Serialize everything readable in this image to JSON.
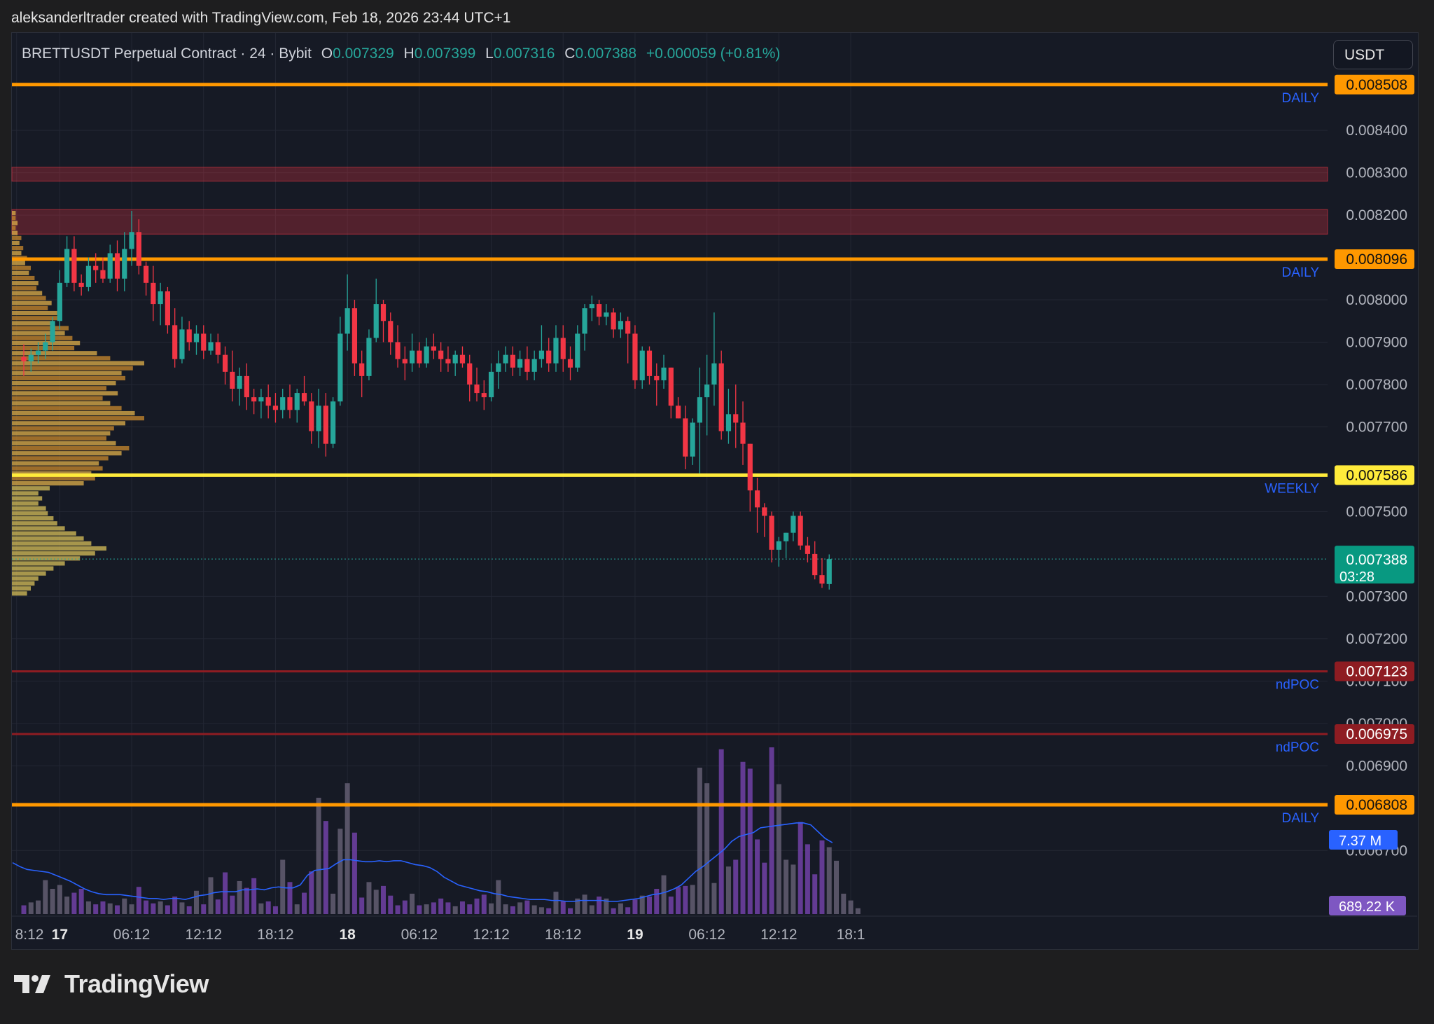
{
  "header": {
    "attribution": "aleksanderltrader created with TradingView.com, Feb 18, 2026 23:44 UTC+1"
  },
  "legend": {
    "title": "BRETTUSDT Perpetual Contract · 24 · Bybit",
    "open_label": "O",
    "open": "0.007329",
    "high_label": "H",
    "high": "0.007399",
    "low_label": "L",
    "low": "0.007316",
    "close_label": "C",
    "close": "0.007388",
    "change": "+0.000059 (+0.81%)"
  },
  "currency_button": "USDT",
  "footer": {
    "brand": "TradingView"
  },
  "colors": {
    "up": "#26a69a",
    "down": "#f23645",
    "daily": "#ff9800",
    "weekly": "#ffeb3b",
    "ndpoc": "#8e1c22",
    "level_text": "#2962ff",
    "volume": "#6b3fa0",
    "volume_ma": "#2962ff"
  },
  "chart_data": {
    "type": "candlestick",
    "symbol": "BRETTUSDT Perpetual Contract",
    "timeframe": "24",
    "exchange": "Bybit",
    "y_ticks": [
      "0.008400",
      "0.008300",
      "0.008200",
      "0.008000",
      "0.007900",
      "0.007800",
      "0.007700",
      "0.007500",
      "0.007300",
      "0.007200",
      "0.007100",
      "0.007000",
      "0.006900",
      "0.006700"
    ],
    "ylim": [
      0.00655,
      0.00863
    ],
    "x_ticks": [
      {
        "label": "8:12",
        "slot": -1
      },
      {
        "label": "17",
        "slot": 5
      },
      {
        "label": "06:12",
        "slot": 15
      },
      {
        "label": "12:12",
        "slot": 25
      },
      {
        "label": "18:12",
        "slot": 35
      },
      {
        "label": "18",
        "slot": 45
      },
      {
        "label": "06:12",
        "slot": 55
      },
      {
        "label": "12:12",
        "slot": 65
      },
      {
        "label": "18:12",
        "slot": 75
      },
      {
        "label": "19",
        "slot": 85
      },
      {
        "label": "06:12",
        "slot": 95
      },
      {
        "label": "12:12",
        "slot": 105
      },
      {
        "label": "18:1",
        "slot": 115
      }
    ],
    "horizontal_levels": [
      {
        "price": 0.008508,
        "label": "0.008508",
        "tag": "DAILY",
        "style": "daily"
      },
      {
        "price": 0.008096,
        "label": "0.008096",
        "tag": "DAILY",
        "style": "daily"
      },
      {
        "price": 0.007586,
        "label": "0.007586",
        "tag": "WEEKLY",
        "style": "weekly"
      },
      {
        "price": 0.007123,
        "label": "0.007123",
        "tag": "ndPOC",
        "style": "ndpoc"
      },
      {
        "price": 0.006975,
        "label": "0.006975",
        "tag": "ndPOC",
        "style": "ndpoc"
      },
      {
        "price": 0.006808,
        "label": "0.006808",
        "tag": "DAILY",
        "style": "daily"
      }
    ],
    "zones": [
      {
        "top": 0.008313,
        "bottom": 0.00828
      },
      {
        "top": 0.008213,
        "bottom": 0.008155
      }
    ],
    "current_price": {
      "price": 0.007388,
      "label": "0.007388",
      "countdown": "03:28"
    },
    "volume_ma_badge": "7.37 M",
    "volume_badge": "689.22 K",
    "candles": [
      [
        0.007865,
        0.007895,
        0.00782,
        0.007855
      ],
      [
        0.007855,
        0.007885,
        0.00783,
        0.00787
      ],
      [
        0.00787,
        0.0079,
        0.00785,
        0.00788
      ],
      [
        0.00788,
        0.00792,
        0.00786,
        0.0079
      ],
      [
        0.0079,
        0.00796,
        0.00788,
        0.00795
      ],
      [
        0.00795,
        0.00807,
        0.00793,
        0.00804
      ],
      [
        0.00804,
        0.00815,
        0.00803,
        0.00812
      ],
      [
        0.00812,
        0.00815,
        0.00802,
        0.00804
      ],
      [
        0.00804,
        0.00806,
        0.00801,
        0.00803
      ],
      [
        0.00803,
        0.0081,
        0.00802,
        0.00808
      ],
      [
        0.00808,
        0.00811,
        0.00804,
        0.00807
      ],
      [
        0.00807,
        0.0081,
        0.00804,
        0.00805
      ],
      [
        0.00805,
        0.00813,
        0.00804,
        0.00811
      ],
      [
        0.00811,
        0.00814,
        0.00802,
        0.00805
      ],
      [
        0.00805,
        0.00816,
        0.00802,
        0.00812
      ],
      [
        0.00812,
        0.00821,
        0.00808,
        0.00816
      ],
      [
        0.00816,
        0.00819,
        0.00806,
        0.00808
      ],
      [
        0.00808,
        0.00809,
        0.00801,
        0.00804
      ],
      [
        0.00804,
        0.00808,
        0.00795,
        0.00799
      ],
      [
        0.00799,
        0.00804,
        0.00794,
        0.00802
      ],
      [
        0.00802,
        0.00803,
        0.00792,
        0.00794
      ],
      [
        0.00794,
        0.00798,
        0.00784,
        0.00786
      ],
      [
        0.00786,
        0.00796,
        0.00785,
        0.00793
      ],
      [
        0.00793,
        0.00795,
        0.00788,
        0.0079
      ],
      [
        0.0079,
        0.00794,
        0.00787,
        0.00792
      ],
      [
        0.00792,
        0.00794,
        0.00786,
        0.00788
      ],
      [
        0.00788,
        0.00792,
        0.00787,
        0.0079
      ],
      [
        0.0079,
        0.00792,
        0.00785,
        0.00787
      ],
      [
        0.00787,
        0.00789,
        0.0078,
        0.00783
      ],
      [
        0.00783,
        0.00788,
        0.00776,
        0.00779
      ],
      [
        0.00779,
        0.00784,
        0.00775,
        0.00782
      ],
      [
        0.00782,
        0.00785,
        0.00774,
        0.00777
      ],
      [
        0.00777,
        0.00779,
        0.00773,
        0.00776
      ],
      [
        0.00776,
        0.00779,
        0.00772,
        0.00777
      ],
      [
        0.00777,
        0.0078,
        0.00772,
        0.00775
      ],
      [
        0.00775,
        0.00778,
        0.00771,
        0.00774
      ],
      [
        0.00774,
        0.00779,
        0.00772,
        0.00777
      ],
      [
        0.00777,
        0.0078,
        0.00772,
        0.00774
      ],
      [
        0.00774,
        0.00779,
        0.00771,
        0.00778
      ],
      [
        0.00778,
        0.00782,
        0.00775,
        0.00776
      ],
      [
        0.00776,
        0.00778,
        0.00766,
        0.00769
      ],
      [
        0.00769,
        0.00779,
        0.00765,
        0.00775
      ],
      [
        0.00775,
        0.00778,
        0.00763,
        0.00766
      ],
      [
        0.00766,
        0.00777,
        0.00765,
        0.00776
      ],
      [
        0.00776,
        0.00796,
        0.00775,
        0.00792
      ],
      [
        0.00792,
        0.00806,
        0.00788,
        0.00798
      ],
      [
        0.00798,
        0.008,
        0.00782,
        0.00785
      ],
      [
        0.00785,
        0.00788,
        0.00777,
        0.00782
      ],
      [
        0.00782,
        0.00793,
        0.00781,
        0.00791
      ],
      [
        0.00791,
        0.00805,
        0.0079,
        0.00799
      ],
      [
        0.00799,
        0.008,
        0.0079,
        0.00795
      ],
      [
        0.00795,
        0.00797,
        0.00787,
        0.0079
      ],
      [
        0.0079,
        0.00794,
        0.00784,
        0.00786
      ],
      [
        0.00786,
        0.00789,
        0.00781,
        0.00785
      ],
      [
        0.00785,
        0.00792,
        0.00783,
        0.00788
      ],
      [
        0.00788,
        0.0079,
        0.00784,
        0.00785
      ],
      [
        0.00785,
        0.00791,
        0.00784,
        0.00789
      ],
      [
        0.00789,
        0.00792,
        0.00786,
        0.00788
      ],
      [
        0.00788,
        0.0079,
        0.00783,
        0.00786
      ],
      [
        0.00786,
        0.00789,
        0.00783,
        0.00785
      ],
      [
        0.00785,
        0.00788,
        0.00782,
        0.00787
      ],
      [
        0.00787,
        0.00789,
        0.00784,
        0.00785
      ],
      [
        0.00785,
        0.00787,
        0.00776,
        0.0078
      ],
      [
        0.0078,
        0.00784,
        0.00776,
        0.00778
      ],
      [
        0.00778,
        0.00781,
        0.00774,
        0.00777
      ],
      [
        0.00777,
        0.00785,
        0.00776,
        0.00783
      ],
      [
        0.00783,
        0.00788,
        0.00779,
        0.00785
      ],
      [
        0.00785,
        0.00789,
        0.00783,
        0.00787
      ],
      [
        0.00787,
        0.00789,
        0.00782,
        0.00784
      ],
      [
        0.00784,
        0.00788,
        0.00782,
        0.00786
      ],
      [
        0.00786,
        0.00789,
        0.00781,
        0.00783
      ],
      [
        0.00783,
        0.00788,
        0.00781,
        0.00786
      ],
      [
        0.00786,
        0.00794,
        0.00784,
        0.00788
      ],
      [
        0.00788,
        0.00791,
        0.00783,
        0.00785
      ],
      [
        0.00785,
        0.00794,
        0.00783,
        0.00791
      ],
      [
        0.00791,
        0.00794,
        0.00783,
        0.00786
      ],
      [
        0.00786,
        0.00789,
        0.00781,
        0.00784
      ],
      [
        0.00784,
        0.00794,
        0.00783,
        0.00792
      ],
      [
        0.00792,
        0.00799,
        0.00788,
        0.00798
      ],
      [
        0.00798,
        0.00801,
        0.00795,
        0.00799
      ],
      [
        0.00799,
        0.008,
        0.00794,
        0.00796
      ],
      [
        0.00796,
        0.00799,
        0.00794,
        0.00797
      ],
      [
        0.00797,
        0.00798,
        0.00791,
        0.00793
      ],
      [
        0.00793,
        0.00797,
        0.00791,
        0.00795
      ],
      [
        0.00795,
        0.00796,
        0.00785,
        0.00792
      ],
      [
        0.00792,
        0.00794,
        0.00779,
        0.00781
      ],
      [
        0.00781,
        0.00789,
        0.00779,
        0.00788
      ],
      [
        0.00788,
        0.00789,
        0.0078,
        0.00782
      ],
      [
        0.00782,
        0.00785,
        0.00775,
        0.00781
      ],
      [
        0.00781,
        0.00787,
        0.00779,
        0.00784
      ],
      [
        0.00784,
        0.00784,
        0.00772,
        0.00775
      ],
      [
        0.00775,
        0.00777,
        0.00772,
        0.00772
      ],
      [
        0.00772,
        0.00775,
        0.0076,
        0.00763
      ],
      [
        0.00763,
        0.00772,
        0.00761,
        0.00771
      ],
      [
        0.00771,
        0.00784,
        0.00759,
        0.00777
      ],
      [
        0.00777,
        0.00787,
        0.00768,
        0.0078
      ],
      [
        0.0078,
        0.00797,
        0.00775,
        0.00785
      ],
      [
        0.00785,
        0.00788,
        0.00767,
        0.00769
      ],
      [
        0.00769,
        0.00779,
        0.00766,
        0.00773
      ],
      [
        0.00773,
        0.0078,
        0.00765,
        0.00771
      ],
      [
        0.00771,
        0.00776,
        0.00761,
        0.00766
      ],
      [
        0.00766,
        0.00766,
        0.0075,
        0.00755
      ],
      [
        0.00755,
        0.00758,
        0.00745,
        0.00751
      ],
      [
        0.00751,
        0.00752,
        0.00744,
        0.00749
      ],
      [
        0.00749,
        0.0075,
        0.00738,
        0.00741
      ],
      [
        0.00741,
        0.00744,
        0.00737,
        0.00743
      ],
      [
        0.00743,
        0.00745,
        0.00739,
        0.00745
      ],
      [
        0.00745,
        0.0075,
        0.00743,
        0.00749
      ],
      [
        0.00749,
        0.0075,
        0.00741,
        0.00742
      ],
      [
        0.00742,
        0.00744,
        0.00738,
        0.0074
      ],
      [
        0.0074,
        0.00743,
        0.00734,
        0.00735
      ],
      [
        0.00735,
        0.00739,
        0.00732,
        0.00733
      ],
      [
        0.007329,
        0.007399,
        0.007316,
        0.007388
      ]
    ],
    "volume": [
      0.9,
      1.2,
      1.4,
      3.5,
      2.6,
      3.0,
      1.8,
      2.2,
      2.6,
      1.3,
      1.0,
      1.3,
      1.1,
      0.9,
      1.6,
      1.0,
      2.8,
      1.4,
      1.1,
      1.3,
      0.9,
      1.8,
      1.2,
      0.8,
      2.4,
      1.0,
      3.8,
      1.5,
      4.3,
      1.9,
      3.4,
      2.7,
      3.7,
      1.1,
      1.3,
      0.8,
      5.6,
      3.3,
      1.0,
      2.2,
      4.4,
      12.0,
      9.6,
      2.1,
      8.8,
      13.5,
      8.4,
      1.7,
      3.3,
      2.5,
      2.9,
      1.9,
      0.9,
      1.4,
      2.1,
      0.9,
      1.0,
      1.2,
      1.6,
      1.2,
      0.8,
      1.3,
      1.0,
      1.6,
      2.0,
      1.1,
      3.5,
      1.0,
      0.8,
      1.2,
      1.4,
      0.9,
      0.7,
      0.6,
      2.3,
      1.3,
      0.6,
      1.6,
      2.0,
      0.9,
      1.8,
      1.6,
      0.6,
      1.1,
      0.7,
      1.5,
      1.9,
      1.8,
      2.6,
      4.0,
      1.8,
      2.8,
      2.9,
      3.0,
      15.1,
      13.5,
      3.2,
      17.0,
      4.9,
      5.6,
      15.7,
      15.0,
      7.7,
      5.3,
      17.2,
      13.4,
      5.6,
      5.1,
      9.5,
      7.2,
      4.1,
      7.6,
      6.9,
      5.5,
      2.1,
      1.4,
      0.6
    ],
    "volume_ma": [
      5.3,
      4.9,
      4.6,
      4.5,
      4.4,
      4.3,
      4.0,
      3.7,
      3.4,
      3.0,
      2.6,
      2.3,
      2.1,
      2.0,
      2.0,
      2.0,
      1.9,
      1.8,
      1.7,
      1.6,
      1.6,
      1.5,
      1.6,
      1.6,
      1.5,
      1.7,
      1.9,
      2.0,
      2.2,
      2.3,
      2.3,
      2.3,
      2.5,
      2.5,
      2.6,
      2.5,
      2.7,
      2.8,
      2.7,
      2.7,
      3.0,
      4.0,
      4.5,
      4.6,
      4.7,
      5.2,
      5.6,
      5.6,
      5.5,
      5.4,
      5.4,
      5.5,
      5.4,
      5.5,
      5.5,
      5.3,
      5.1,
      5.0,
      4.8,
      4.4,
      3.8,
      3.4,
      3.0,
      2.8,
      2.6,
      2.4,
      2.3,
      2.1,
      2.0,
      1.8,
      1.7,
      1.6,
      1.5,
      1.5,
      1.5,
      1.4,
      1.4,
      1.3,
      1.3,
      1.4,
      1.4,
      1.4,
      1.4,
      1.3,
      1.3,
      1.4,
      1.5,
      1.6,
      1.8,
      2.0,
      2.1,
      2.3,
      2.6,
      3.0,
      3.7,
      4.4,
      4.9,
      5.5,
      6.1,
      6.7,
      7.5,
      8.0,
      8.2,
      8.4,
      8.9,
      9.0,
      9.1,
      9.2,
      9.3,
      9.4,
      9.4,
      9.2,
      8.5,
      7.8,
      7.37
    ],
    "volume_profile": [
      0.2,
      0.2,
      0.3,
      0.2,
      0.3,
      0.5,
      0.4,
      0.6,
      0.5,
      0.8,
      0.7,
      1.0,
      0.9,
      1.2,
      1.4,
      1.3,
      1.6,
      1.8,
      2.1,
      1.9,
      2.4,
      2.6,
      2.2,
      3.0,
      2.8,
      3.2,
      3.6,
      3.3,
      4.5,
      5.2,
      7.0,
      6.4,
      5.8,
      6.0,
      5.5,
      5.0,
      5.6,
      4.8,
      5.2,
      5.8,
      6.5,
      7.0,
      6.0,
      5.4,
      5.2,
      5.0,
      5.5,
      6.2,
      5.8,
      5.1,
      4.6,
      4.8,
      4.2,
      4.4,
      3.8,
      2.0,
      1.4,
      1.6,
      1.4,
      1.8,
      1.9,
      2.2,
      2.4,
      2.8,
      3.4,
      3.8,
      4.2,
      5.0,
      4.4,
      3.6,
      2.8,
      2.2,
      1.8,
      1.4,
      1.2,
      1.0,
      0.8
    ]
  }
}
